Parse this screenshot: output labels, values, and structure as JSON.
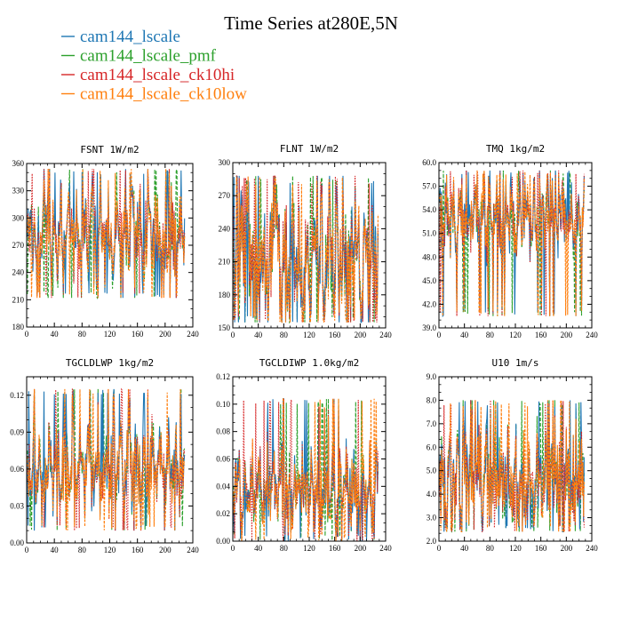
{
  "figure": {
    "title": "Time Series at280E,5N"
  },
  "legend": [
    {
      "name": "cam144_lscale",
      "color": "#1f77b4",
      "dash": ""
    },
    {
      "name": "cam144_lscale_pmf",
      "color": "#2ca02c",
      "dash": "4,2"
    },
    {
      "name": "cam144_lscale_ck10hi",
      "color": "#d62728",
      "dash": "1.5,1.5"
    },
    {
      "name": "cam144_lscale_ck10low",
      "color": "#ff7f0e",
      "dash": "3,1.5"
    }
  ],
  "chart_data": [
    {
      "type": "line",
      "title": "FSNT   1W/m2",
      "xlim": [
        0,
        240
      ],
      "ylim": [
        180,
        360
      ],
      "xticks": [
        0,
        40,
        80,
        120,
        160,
        200,
        240
      ],
      "yticks": [
        "180",
        "210",
        "240",
        "270",
        "300",
        "330",
        "360"
      ],
      "series_profile": {
        "n": 228,
        "base": 280,
        "amp": 32,
        "min": 212,
        "max": 354
      }
    },
    {
      "type": "line",
      "title": "FLNT   1W/m2",
      "xlim": [
        0,
        240
      ],
      "ylim": [
        150,
        300
      ],
      "xticks": [
        0,
        40,
        80,
        120,
        160,
        200,
        240
      ],
      "yticks": [
        "150",
        "180",
        "210",
        "240",
        "270",
        "300"
      ],
      "series_profile": {
        "n": 228,
        "base": 212,
        "amp": 38,
        "min": 155,
        "max": 288
      }
    },
    {
      "type": "line",
      "title": "TMQ   1kg/m2",
      "xlim": [
        0,
        240
      ],
      "ylim": [
        39.0,
        60.0
      ],
      "xticks": [
        0,
        40,
        80,
        120,
        160,
        200,
        240
      ],
      "yticks": [
        "39.0",
        "42.0",
        "45.0",
        "48.0",
        "51.0",
        "54.0",
        "57.0",
        "60.0"
      ],
      "series_profile": {
        "n": 228,
        "base": 53.0,
        "amp": 3.0,
        "min": 40.5,
        "max": 59.0
      }
    },
    {
      "type": "line",
      "title": "TGCLDLWP   1kg/m2",
      "xlim": [
        0,
        240
      ],
      "ylim": [
        0.0,
        0.135
      ],
      "xticks": [
        0,
        40,
        80,
        120,
        160,
        200,
        240
      ],
      "yticks": [
        "0.00",
        "0.03",
        "0.06",
        "0.09",
        "0.12"
      ],
      "series_profile": {
        "n": 228,
        "base": 0.062,
        "amp": 0.022,
        "min": 0.01,
        "max": 0.125
      }
    },
    {
      "type": "line",
      "title": "TGCLDIWP   1.0kg/m2",
      "xlim": [
        0,
        240
      ],
      "ylim": [
        0.0,
        0.12
      ],
      "xticks": [
        0,
        40,
        80,
        120,
        160,
        200,
        240
      ],
      "yticks": [
        "0.00",
        "0.02",
        "0.04",
        "0.06",
        "0.08",
        "0.10",
        "0.12"
      ],
      "series_profile": {
        "n": 228,
        "base": 0.038,
        "amp": 0.02,
        "min": 0.0,
        "max": 0.104
      }
    },
    {
      "type": "line",
      "title": "U10   1m/s",
      "xlim": [
        0,
        240
      ],
      "ylim": [
        2.0,
        9.0
      ],
      "xticks": [
        0,
        40,
        80,
        120,
        160,
        200,
        240
      ],
      "yticks": [
        "2.0",
        "3.0",
        "4.0",
        "5.0",
        "6.0",
        "7.0",
        "8.0",
        "9.0"
      ],
      "series_profile": {
        "n": 228,
        "base": 4.6,
        "amp": 1.4,
        "min": 2.4,
        "max": 8.0
      }
    }
  ]
}
